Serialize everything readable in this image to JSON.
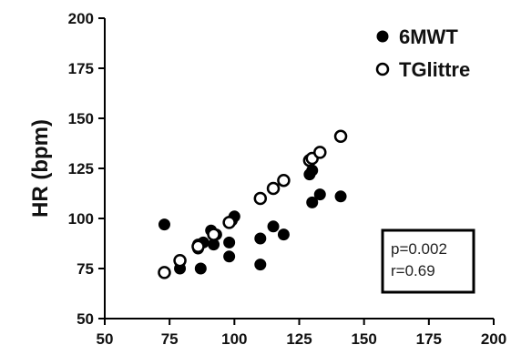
{
  "chart_data": {
    "type": "scatter",
    "title": "",
    "xlabel": "",
    "ylabel": "HR (bpm)",
    "xlim": [
      50,
      200
    ],
    "ylim": [
      50,
      200
    ],
    "xticks": [
      "50",
      "75",
      "100",
      "125",
      "150",
      "175",
      "200"
    ],
    "yticks": [
      "50",
      "75",
      "100",
      "125",
      "150",
      "175",
      "200"
    ],
    "grid": false,
    "legend_position": "top-right",
    "series": [
      {
        "name": "6MWT",
        "marker": "filled-circle",
        "color": "#000000",
        "points": [
          {
            "x": 73,
            "y": 97
          },
          {
            "x": 79,
            "y": 75
          },
          {
            "x": 86,
            "y": 85
          },
          {
            "x": 86,
            "y": 87
          },
          {
            "x": 87,
            "y": 75
          },
          {
            "x": 88,
            "y": 88
          },
          {
            "x": 91,
            "y": 94
          },
          {
            "x": 92,
            "y": 87
          },
          {
            "x": 93,
            "y": 92
          },
          {
            "x": 98,
            "y": 81
          },
          {
            "x": 98,
            "y": 88
          },
          {
            "x": 99,
            "y": 99
          },
          {
            "x": 100,
            "y": 101
          },
          {
            "x": 110,
            "y": 77
          },
          {
            "x": 110,
            "y": 90
          },
          {
            "x": 115,
            "y": 96
          },
          {
            "x": 119,
            "y": 92
          },
          {
            "x": 129,
            "y": 122
          },
          {
            "x": 130,
            "y": 108
          },
          {
            "x": 130,
            "y": 124
          },
          {
            "x": 133,
            "y": 112
          },
          {
            "x": 141,
            "y": 111
          }
        ]
      },
      {
        "name": "TGlittre",
        "marker": "open-circle",
        "color": "#000000",
        "points": [
          {
            "x": 73,
            "y": 73
          },
          {
            "x": 79,
            "y": 79
          },
          {
            "x": 86,
            "y": 86
          },
          {
            "x": 92,
            "y": 92
          },
          {
            "x": 98,
            "y": 98
          },
          {
            "x": 110,
            "y": 110
          },
          {
            "x": 115,
            "y": 115
          },
          {
            "x": 119,
            "y": 119
          },
          {
            "x": 129,
            "y": 129
          },
          {
            "x": 130,
            "y": 130
          },
          {
            "x": 133,
            "y": 133
          },
          {
            "x": 141,
            "y": 141
          }
        ]
      }
    ],
    "annotations": {
      "p_text": "p=0.002",
      "r_text": "r=0.69"
    }
  }
}
